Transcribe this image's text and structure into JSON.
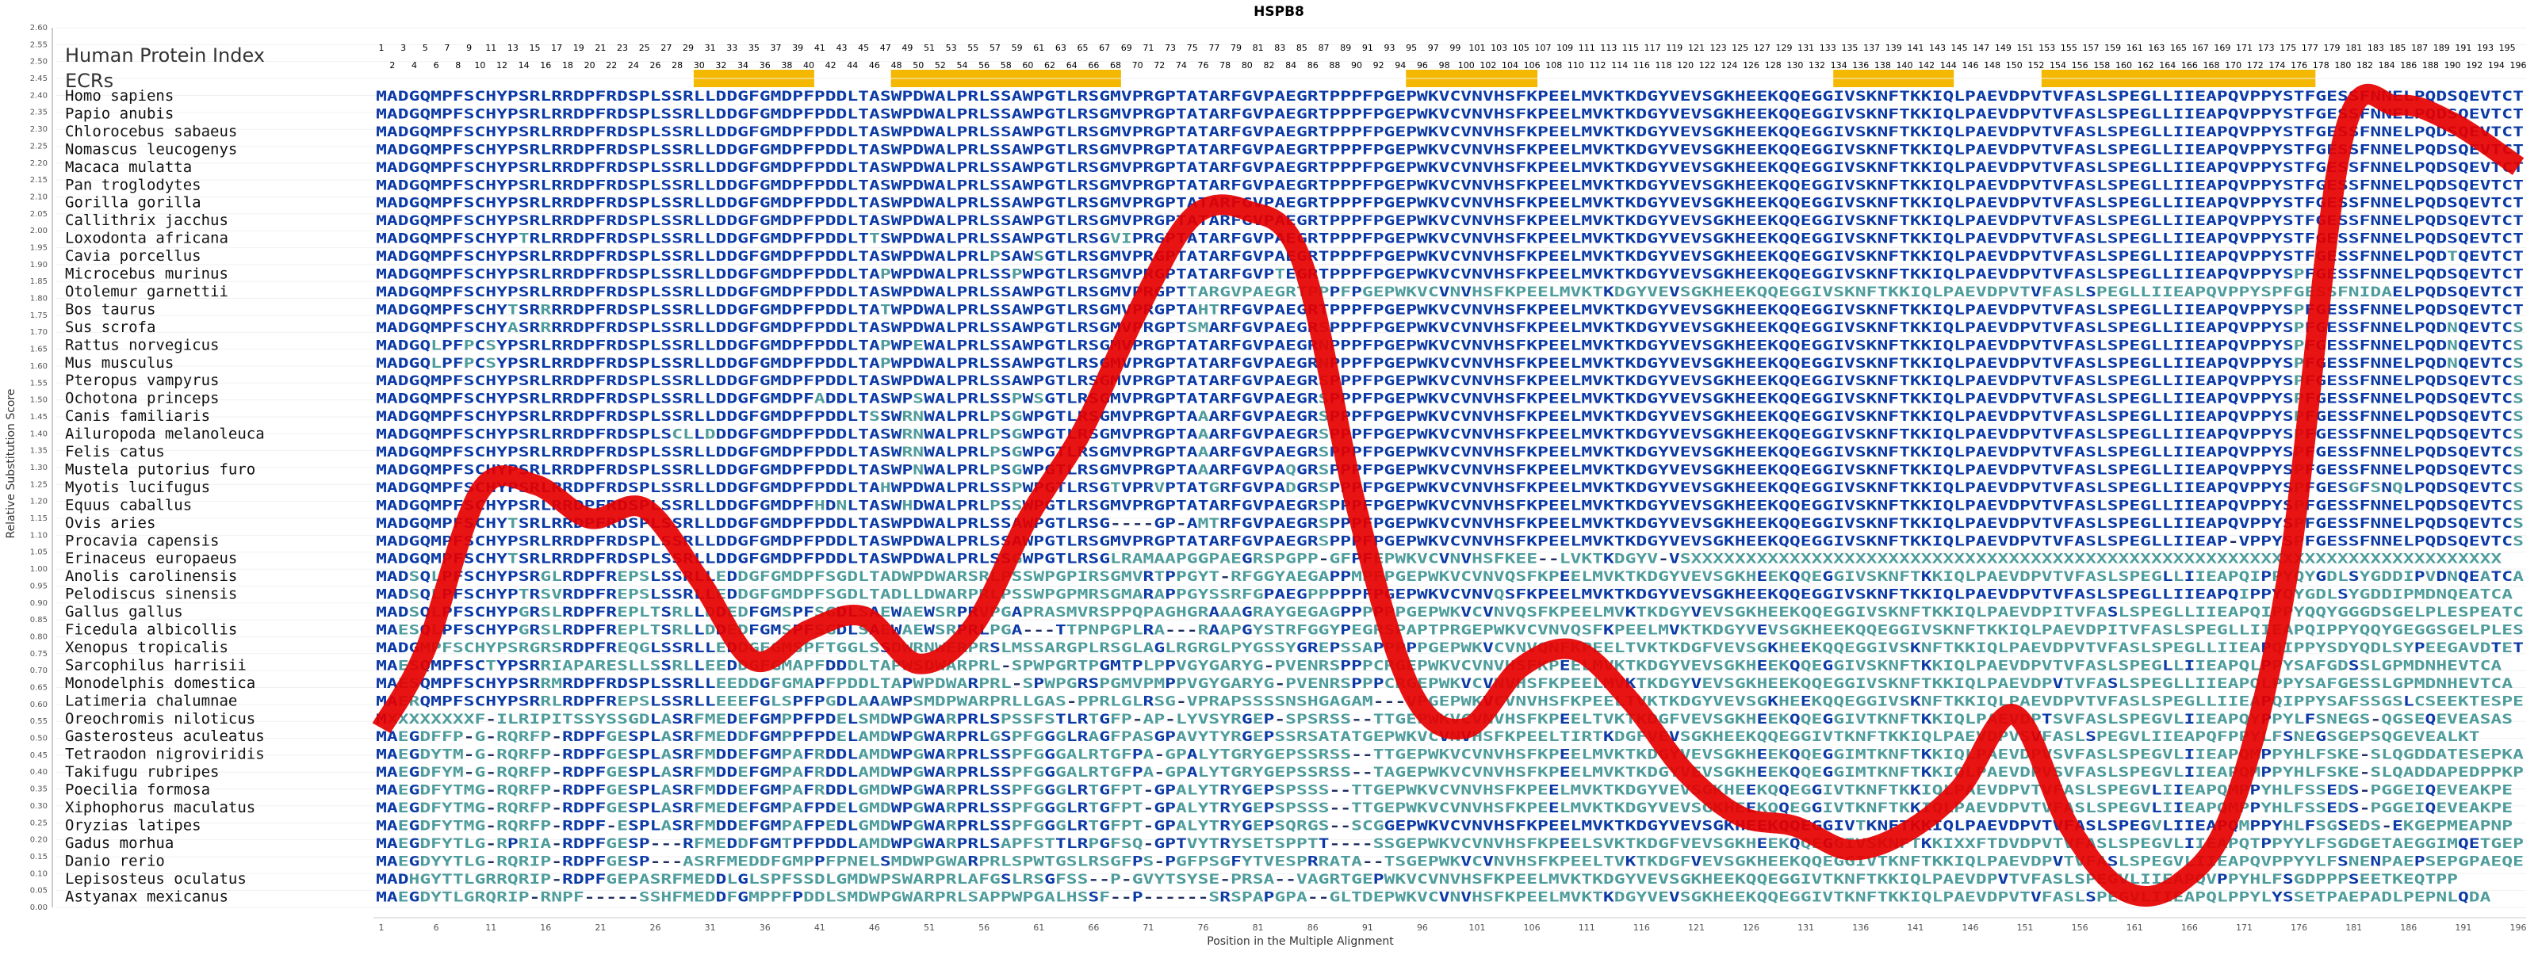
{
  "chart_data": {
    "type": "line",
    "title": "HSPB8",
    "xlabel": "Position in the Multiple Alignment",
    "ylabel": "Relative Substitution Score",
    "ylim": [
      0,
      2.6
    ],
    "y_ticks": [
      "0.00",
      "0.05",
      "0.10",
      "0.15",
      "0.20",
      "0.25",
      "0.30",
      "0.35",
      "0.40",
      "0.45",
      "0.50",
      "0.55",
      "0.60",
      "0.65",
      "0.70",
      "0.75",
      "0.80",
      "0.85",
      "0.90",
      "0.95",
      "1.00",
      "1.05",
      "1.10",
      "1.15",
      "1.20",
      "1.25",
      "1.30",
      "1.35",
      "1.40",
      "1.45",
      "1.50",
      "1.55",
      "1.60",
      "1.65",
      "1.70",
      "1.75",
      "1.80",
      "1.85",
      "1.90",
      "1.95",
      "2.00",
      "2.05",
      "2.10",
      "2.15",
      "2.20",
      "2.25",
      "2.30",
      "2.35",
      "2.40",
      "2.45",
      "2.50",
      "2.55",
      "2.60"
    ],
    "xlim": [
      1,
      196
    ],
    "x_ticks": [
      "1",
      "6",
      "11",
      "16",
      "21",
      "26",
      "31",
      "36",
      "41",
      "46",
      "51",
      "56",
      "61",
      "66",
      "71",
      "76",
      "81",
      "86",
      "91",
      "96",
      "101",
      "106",
      "111",
      "116",
      "121",
      "126",
      "131",
      "136",
      "141",
      "146",
      "151",
      "156",
      "161",
      "166",
      "171",
      "176",
      "181",
      "186",
      "191",
      "196"
    ],
    "human_protein_index_label": "Human Protein Index",
    "ecrs_label": "ECRs",
    "hpi_odd": [
      "1",
      "3",
      "5",
      "7",
      "9",
      "11",
      "13",
      "15",
      "17",
      "19",
      "21",
      "23",
      "25",
      "27",
      "29",
      "31",
      "33",
      "35",
      "37",
      "39",
      "41",
      "43",
      "45",
      "47",
      "49",
      "51",
      "53",
      "55",
      "57",
      "59",
      "61",
      "63",
      "65",
      "67",
      "69",
      "71",
      "73",
      "75",
      "77",
      "79",
      "81",
      "83",
      "85",
      "87",
      "89",
      "91",
      "93",
      "95",
      "97",
      "99",
      "101",
      "103",
      "105",
      "107",
      "109",
      "111",
      "113",
      "115",
      "117",
      "119",
      "121",
      "123",
      "125",
      "127",
      "129",
      "131",
      "133",
      "135",
      "137",
      "139",
      "141",
      "143",
      "145",
      "147",
      "149",
      "151",
      "153",
      "155",
      "157",
      "159",
      "161",
      "163",
      "165",
      "167",
      "169",
      "171",
      "173",
      "175",
      "177",
      "179",
      "181",
      "183",
      "185",
      "187",
      "189",
      "191",
      "193",
      "195"
    ],
    "hpi_even": [
      "2",
      "4",
      "6",
      "8",
      "10",
      "12",
      "14",
      "16",
      "18",
      "20",
      "22",
      "24",
      "26",
      "28",
      "30",
      "32",
      "34",
      "36",
      "38",
      "40",
      "42",
      "44",
      "46",
      "48",
      "50",
      "52",
      "54",
      "56",
      "58",
      "60",
      "62",
      "64",
      "66",
      "68",
      "70",
      "72",
      "74",
      "76",
      "78",
      "80",
      "82",
      "84",
      "86",
      "88",
      "90",
      "92",
      "94",
      "96",
      "98",
      "100",
      "102",
      "104",
      "106",
      "108",
      "110",
      "112",
      "114",
      "116",
      "118",
      "120",
      "122",
      "124",
      "126",
      "128",
      "130",
      "132",
      "134",
      "136",
      "138",
      "140",
      "142",
      "144",
      "146",
      "148",
      "150",
      "152",
      "154",
      "156",
      "158",
      "160",
      "162",
      "164",
      "166",
      "168",
      "170",
      "172",
      "174",
      "176",
      "178",
      "180",
      "182",
      "184",
      "186",
      "188",
      "190",
      "192",
      "194",
      "196"
    ],
    "ecr_regions": [
      [
        30,
        40
      ],
      [
        48,
        68
      ],
      [
        95,
        106
      ],
      [
        134,
        144
      ],
      [
        153,
        177
      ]
    ],
    "species": [
      "Homo sapiens",
      "Papio anubis",
      "Chlorocebus sabaeus",
      "Nomascus leucogenys",
      "Macaca mulatta",
      "Pan troglodytes",
      "Gorilla gorilla",
      "Callithrix jacchus",
      "Loxodonta africana",
      "Cavia porcellus",
      "Microcebus murinus",
      "Otolemur garnettii",
      "Bos taurus",
      "Sus scrofa",
      "Rattus norvegicus",
      "Mus musculus",
      "Pteropus vampyrus",
      "Ochotona princeps",
      "Canis familiaris",
      "Ailuropoda melanoleuca",
      "Felis catus",
      "Mustela putorius furo",
      "Myotis lucifugus",
      "Equus caballus",
      "Ovis aries",
      "Procavia capensis",
      "Erinaceus europaeus",
      "Anolis carolinensis",
      "Pelodiscus sinensis",
      "Gallus gallus",
      "Ficedula albicollis",
      "Xenopus tropicalis",
      "Sarcophilus harrisii",
      "Monodelphis domestica",
      "Latimeria chalumnae",
      "Oreochromis niloticus",
      "Gasterosteus aculeatus",
      "Tetraodon nigroviridis",
      "Takifugu rubripes",
      "Poecilia formosa",
      "Xiphophorus maculatus",
      "Oryzias latipes",
      "Gadus morhua",
      "Danio rerio",
      "Lepisosteus oculatus",
      "Astyanax mexicanus"
    ],
    "sequences": [
      "MADGQMPFSCHYPSRLRRDPFRDSPLSSRLLDDGFGMDPFPDDLTASWPDWALPRLSSAWPGTLRSGMVPRGPTATARFGVPAEGRTPPPFPGEPWKVCVNVHSFKPEELMVKTKDGYVEVSGKHEEKQQEGGIVSKNFTKKIQLPAEVDPVTVFASLSPEGLLIIEAPQVPPYSTFGESSFNNELPQDSQEVTCT",
      "MADGQMPFSCHYPSRLRRDPFRDSPLSSRLLDDGFGMDPFPDDLTASWPDWALPRLSSAWPGTLRSGMVPRGPTATARFGVPAEGRTPPPFPGEPWKVCVNVHSFKPEELMVKTKDGYVEVSGKHEEKQQEGGIVSKNFTKKIQLPAEVDPVTVFASLSPEGLLIIEAPQVPPYSTFGESSFNNELPQDSQEVTCT",
      "MADGQMPFSCHYPSRLRRDPFRDSPLSSRLLDDGFGMDPFPDDLTASWPDWALPRLSSAWPGTLRSGMVPRGPTATARFGVPAEGRTPPPFPGEPWKVCVNVHSFKPEELMVKTKDGYVEVSGKHEEKQQEGGIVSKNFTKKIQLPAEVDPVTVFASLSPEGLLIIEAPQVPPYSTFGESSFNNELPQDSQEVTCT",
      "MADGQMPFSCHYPSRLRRDPFRDSPLSSRLLDDGFGMDPFPDDLTASWPDWALPRLSSAWPGTLRSGMVPRGPTATARFGVPAEGRTPPPFPGEPWKVCVNVHSFKPEELMVKTKDGYVEVSGKHEEKQQEGGIVSKNFTKKIQLPAEVDPVTVFASLSPEGLLIIEAPQVPPYSTFGESSFNNELPQDSQEVTCT",
      "MADGQMPFSCHYPSRLRRDPFRDSPLSSRLLDDGFGMDPFPDDLTASWPDWALPRLSSAWPGTLRSGMVPRGPTATARFGVPAEGRTPPPFPGEPWKVCVNVHSFKPEELMVKTKDGYVEVSGKHEEKQQEGGIVSKNFTKKIQLPAEVDPVTVFASLSPEGLLIIEAPQVPPYSTFGESSFNNELPQDSQEVTCT",
      "MADGQMPFSCHYPSRLRRDPFRDSPLSSRLLDDGFGMDPFPDDLTASWPDWALPRLSSAWPGTLRSGMVPRGPTATARFGVPAEGRTPPPFPGEPWKVCVNVHSFKPEELMVKTKDGYVEVSGKHEEKQQEGGIVSKNFTKKIQLPAEVDPVTVFASLSPEGLLIIEAPQVPPYSTFGESSFNNELPQDSQEVTCT",
      "MADGQMPFSCHYPSRLRRDPFRDSPLSSRLLDDGFGMDPFPDDLTASWPDWALPRLSSAWPGTLRSGMVPRGPTATARFGVPAEGRTPPPFPGEPWKVCVNVHSFKPEELMVKTKDGYVEVSGKHEEKQQEGGIVSKNFTKKIQLPAEVDPVTVFASLSPEGLLIIEAPQVPPYSTFGESSFNNELPQDSQEVTCT",
      "MADGQMPFSCHYPSRLRRDPFRDSPLSSRLLDDGFGMDPFPDDLTASWPDWALPRLSSAWPGTLRSGMVPRGPTATARFGVPAEGRTPPPFPGEPWKVCVNVHSFKPEELMVKTKDGYVEVSGKHEEKQQEGGIVSKNFTKKIQLPAEVDPVTVFASLSPEGLLIIEAPQVPPYSTFGESSFNNELPQDSQEVTCT",
      "MADGQMPFSCHYPTRLRRDPFRDSPLSSRLLDDGFGMDPFPDDLTTSWPDWALPRLSSAWPGTLRSGVIPRGPTATARFGVPAEGRTPPPFPGEPWKVCVNVHSFKPEELMVKTKDGYVEVSGKHEEKQQEGGIVSKNFTKKIQLPAEVDPVTVFASLSPEGLLIIEAPQVPPYSTFGESSFNNELPQDSQEVTCT",
      "MADGQMPFSCHYPSRLRRDPFRDSPLSSRLLDDGFGMDPFPDDLTASWPDWALPRLPSAWSGTLRSGMVPRGPTATARFGVPAEGRTPPPFPGEPWKVCVNVHSFKPEELMVKTKDGYVEVSGKHEEKQQEGGIVSKNFTKKIQLPAEVDPVTVFASLSPEGLLIIEAPQVPPYSTFGESSFNNELPQDTQEVTCT",
      "MADGQMPFSCHYPSRLRRDPFRDSPLSSRLLDDGFGMDPFPDDLTAPWPDWALPRLSSPWPGTLRSGMVPRGPTATARFGVPTEGRTPPPFPGEPWKVCVNVHSFKPEELMVKTKDGYVEVSGKHEEKQQEGGIVSKNFTKKIQLPAEVDPVTVFASLSPEGLLIIEAPQVPPYSPFGESSFNNELPQDSQEVTCT",
      "MADGQMPFSCHYPSRLRRDPFRDSPLSSRLLDDGFGMDPFPDDLTASWPDWALPRLSSAWPGTLRSGMVPRGPTTARGVPAEGRTPPPFPGEPWKVCVNVHSFKPEELMVKTKDGYVEVSGKHEEKQQEGGIVSKNFTKKIQLPAEVDPVTVFASLSPEGLLIIEAPQVPPYSPFGESSFNIDAELPQDSQEVTCT",
      "MADGQMPFSCHYTSRRRRDPFRDSPLSSRLLDDGFGMDPFPDDLTATWPDWALPRLSSAWPGTLRSGMVPRGPTAHTRFGVPAEGRTPPPFPGEPWKVCVNVHSFKPEELMVKTKDGYVEVSGKHEEKQQEGGIVSKNFTKKIQLPAEVDPVTVFASLSPEGLLIIEAPQVPPYSPFGESSFNNELPQDSQEVTCT",
      "MADGQMPFSCHYASRRRRDPFRDSPLSSRLLDDGFGMDPFPDDLTASWPDWALPRLSSAWPGTLRSGMVPRGPTSMARFGVPAEGRSPPPFPGEPWKVCVNVHSFKPEELMVKTKDGYVEVSGKHEEKQQEGGIVSKNFTKKIQLPAEVDPVTVFASLSPEGLLIIEAPQVPPYSPFGESSFNNELPQDNQEVTCS",
      "MADGQLPFPCSYPSRLRRDPFRDSPLSSRLLDDGFGMDPFPDDLTAPWPEWALPRLSSAWPGTLRSGMVPRGPTATARFGVPAEGRNPPPFPGEPWKVCVNVHSFKPEELMVKTKDGYVEVSGKHEEKQQEGGIVSKNFTKKIQLPAEVDPVTVFASLSPEGLLIIEAPQVPPYSPFGESSFNNELPQDNQEVTCS",
      "MADGQLPFPCSYPSRLRRDPFRDSPLSSRLLDDGFGMDPFPDDLTAPWPDWALPRLSSAWPGTLRSGMVPRGPTATARFGVPAEGRNPPPFPGEPWKVCVNVHSFKPEELMVKTKDGYVEVSGKHEEKQQEGGIVSKNFTKKIQLPAEVDPVTVFASLSPEGLLIIEAPQVPPYSPFGESSFNNELPQDNQEVTCS",
      "MADGQMPFSCHYPSRLRRDPFRDSPLSSRLLDDGFGMDPFPDDLTASWPDWALPRLSSAWPGTLRSGMVPRGPTATARFGVPAEGRSPPPFPGEPWKVCVNVHSFKPEELMVKTKDGYVEVSGKHEEKQQEGGIVSKNFTKKIQLPAEVDPVTVFASLSPEGLLIIEAPQVPPYSPFGESSFNNELPQDSQEVTCS",
      "MADGQMPFSCHYPSRLRRDPFRDSPLSSRLLDDGFGMDPFADDLTASWPSWALPRLSSPWSGTLRSGMVPRGPTATARFGVPAEGRSPPPFPGEPWKVCVNVHSFKPEELMVKTKDGYVEVSGKHEEKQQEGGIVSKNFTKKIQLPAEVDPVTVFASLSPEGLLIIEAPQVPPYSPFGESSFNNELPQDSQEVTCS",
      "MADGQMPFSCHYPSRLRRDPFRDSPLSSRLLDDGFGMDPFPDDLTSSWRNWALPRLPSGWPGTLRSGMVPRGPTAAARFGVPAEGRSPPPFPGEPWKVCVNVHSFKPEELMVKTKDGYVEVSGKHEEKQQEGGIVSKNFTKKIQLPAEVDPVTVFASLSPEGLLIIEAPQVPPYSPFGESSFNNELPQDSQEVTCS",
      "MADGQMPFSCHYPSRLRRDPFRDSPLSCLLDDDGFGMDPFPDDLTASWRNWALPRLPSGWPGTLRSGMVPRGPTAAARFGVPAEGRSPPPFPGEPWKVCVNVHSFKPEELMVKTKDGYVEVSGKHEEKQQEGGIVSKNFTKKIQLPAEVDPVTVFASLSPEGLLIIEAPQVPPYSPFGESSFNNELPQDSQEVTCS",
      "MADGQMPFSCHYPSRLRRDPFRDSPLSSRLLDDGFGMDPFPDDLTASWRNWALPRLPSGWPGTLRSGMVPRGPTAAARFGVPAEGRSPPPFPGEPWKVCVNVHSFKPEELMVKTKDGYVEVSGKHEEKQQEGGIVSKNFTKKIQLPAEVDPVTVFASLSPEGLLIIEAPQVPPYSPFGESSFNNELPQDSQEVTCS",
      "MADGQMPFSCHYPSRLRRDPFRDSPLSSRLLDDGFGMDPFPDDLTASWPNWALPRLPSGWPGTLRSGMVPRGPTAAARFGVPAQGRSPPPFPGEPWKVCVNVHSFKPEELMVKTKDGYVEVSGKHEEKQQEGGIVSKNFTKKIQLPAEVDPVTVFASLSPEGLLIIEAPQVPPYSPFGESSFNNELPQDSQEVTCS",
      "MADGQMPFSCHYPSRLRRDPFRDSPLSSRLLDDGFGMDPFPDDLTAHWPDWALPRLSSPWPGTLRSGTVPRVPTATGRFGVPADGRSPPPFPGEPWKVCVNVHSFKPEELMVKTKDGYVEVSGKHEEKQQEGGIVSKNFTKKIQLPAEVDPVTVFASLSPEGLLIIEAPQVPPYSPFGESGFSNQLPQDSQEVTCS",
      "MADGQMPFSCHYPSRLRRDPFRDSPLSSRLLDDGFGMDPFHDNLTASWHDWALPRLPSSWPGTLRSGMVPRGPTATARFGVPAEGRSPPPFPGEPWKVCVNVHSFKPEELMVKTKDGYVEVSGKHEEKQQEGGIVSKNFTKKIQLPAEVDPVTVFASLSPEGLLIIEAPQVPPYSPFGESSFNNELPQDSQEVTCS",
      "MADGQMPFSCHYTSRLRRDPFRDSPLSSRLLDDGFGMDPFPDDLTASWPDWALPRLSSAWPGTLRSG----GP-AMTRFGVPAEGRSPPPFPGEPWKVCVNVHSFKPEELMVKTKDGYVEVSGKHEEKQQEGGIVSKNFTKKIQLPAEVDPVTVFASLSPEGLLIIEAPQVPPYSPFGESSFNNELPQDSQEVTCS",
      "MADGQMPFSCHYPSRLRRDPFRDSPLSSRLLDDGFGMDPFPDDLTASWPDWALPRLSSAWPGTLRSGMVPRGPTATARFGVPAEGRSPPPFPGEPWKVCVNVHSFKPEELMVKTKDGYVEVSGKHEEKQQEGGIVSKNFTKKIQLPAEVDPVTVFASLSPEGLLIIEAP-VPPYSPFGESSFNNELPQDSQEVTCS",
      "MADGQMPFSCHYTSRLRRDPFRDSPLSSRLLDDGFGMDPFPDDLTASWPDWALPRLSSGWPGTLRSGLRAMAAPGGPAEGRSPGPP-GFPFEPWKVCVNVHSFKEE--LVKTKDGYV-VSXXXXXXXXXXXXXXXXXXXXXXXXXXXXXXXXXXXXXXXXXXXXXXXXXXXXXXXXXXXXXXXXXXXXXXXXXX",
      "MADSQLPFSCHYPSRGLRDPFREPSLSSRLLEDDGFGMDPFSGDLTADWPDWARSRLPSSWPGPIRSGMVRTPPGYT-RFGGYAEGAPPMPFPGEPWKVCVNVQSFKPEELMVKTKDGYVEVSGKHEEKQQEGGIVSKNFTKKIQLPAEVDPVTVFASLSPEGLLIIEAPQIPPYQYGDLSYGDDIPVDNQEATCA",
      "MADSQLPFSCHYPTRSVRDPFREPSLSSRLLEDDGFGMDPFSGDLTADLLDWARPRLPSSWPGPMRSGMARAPPGYSSRFGPAEGPPPPPFPGEPWKVCVNVQSFKPEELMVKTKDGYVEVSGKHEEKQQEGGIVSKNFTKKIQLPAEVDPVTVFASLSPEGLLIIEAPQIPPYQYGDLSYGDDIPMDNQEATCA",
      "MADSQLPFSCHYPGRSLRDPFREPLTSRLLDDEDFGMSPFSGDLSAEWAEWSRPRVPGAPRASMVRSPPQPAGHGRAAAGRAYGEGAGPPPPPPGEPWKVCVNVQSFKPEELMVKTKDGYVEVSGKHEEKQQEGGIVSKNFTKKIQLPAEVDPITVFASLSPEGLLIIEAPQIPPYQQYGGGDSGELPLESPEATCA",
      "MAESQLPFSCHYPGRSLRDPFREPLTSRLLDDEDFGMSPFSGDLSAEWAEWSRPRLPGA---TTPNPGPLRA---RAAPGYSTRFGGYPEGRSPAPTPRGEPWKVCVNVQSFKPEELMVKTKDGYVEVSGKHEEKQQEGGIVSKNFTKKIQLPAEVDPITVFASLSPEGLLIIEAPQIPPYQQYGEGGSGELPLESPEATCA",
      "MADGMPFSCHYPSRGRSRDPFREQGLSSRLLEDDGFGMSPFTGGLSSDWRNWERPRSLMSSARGPLRSGLAGLRGRGLPYGSSYGREPSSAPPPPPGEPWKVCVNVQNFKPEELTVKTKDGFVEVSGKHEEKQQEGGIVSKNFTKKIQLPAEVDPVTVFASLSPEGLLIIEAPQIPPYSDYQDLSYPEEGAVDTETTCA",
      "MAESQMPFSCTYPSRRIAPARESLLSSRLLEEDDGFGMAPFDDDLTAPWSDWARPRL-SPWPGRTPGMTPLPPVGYGARYG-PVENRSPPPCRGEPWKVCVNVHSFKPEELMVKTKDGYVEVSGKHEEKQQEGGIVSKNFTKKIQLPAEVDPVTVFASLSPEGLLIIEAPQLPPYSAFGDSSLGPMDNHEVTCA",
      "MAESQMPFSCHYPSRRMRDPFRDSPLSSRLLEEDDGFGMAPFPDDLTAPWPDWARPRL-SPWPGRSPGMVPMPPVGYGARYG-PVENRSPPPCRGEPWKVCVNVHSFKPEELMVKTKDGYVEVSGKHEEKQQEGGIVSKNFTKKIQLPAEVDPVTVFASLSPEGLLIIEAPQLPPYSAFGESSLGPMDNHEVTCA",
      "MAERQMPFSCHYPSRRLRDPFREPSLSSRLLEEEFGLSPFPGDLAAAWPSMDPWARPRLLGAS-PPRLGLRSG-VPRAPSSSSNSHGAGAM---VPGEPWKVCVNVHSFKPEELTVKTKDGYVEVSGKHEEKQQEGGIVSKNFTKKIQLPAEVDPVTVFASLSPEGLLIIEAPQIPPYSAFSSGSLCSEEKTESPEAIVS",
      "MXXXXXXXXF-ILRIPITSSYSSGDLASRFMEDEFGMPPFPDELSMDWPGWARPRLSPSSFSTLRTGFP-AP-LYVSYRGEP-SPSRSS--TTGEPWKVCVNVHSFKPEELTVKTKDGFVEVSGKHEEKQQEGGIVTKNFTKKIQLPAEVDPTSVFASLSPEGVLIIEAPQYPPYLFSNEGS-QGSEQEVEASAS",
      "MAEGDFFP-G-RQRFP-RDPFGESPLASRFMEDDFGMPPFPDELAMDWPGWARPRLGSPFGGGLRAGFPASGPAVYTYRGEPSSRSATATGEPWKVCVNVHSFKPEELTIRTKDGFVEVSGKHEEKQQEGGIVTKNFTKKIQLPAEVDPVSVFASLSPEGVLIIEAPQFPPYLFSNEGSGEPSQGEVEALKT",
      "MAEGDYTM-G-RQRFP-RDPFGESPLASRFMDDEFGMPAFRDDLAMDWPGWARPRLSSPFGGGALRTGFPA-GPALYTGRYGEPSSRSS--TTGEPWKVCVNVHSFKPEELMVKTKDGYVEVSGKHEEKQQEGGIMTKNFTKKIQLPAEVDPVSVFASLSPEGVLIIEAPQMPPYHLFSKE-SLQGDDATESEPKA",
      "MAEGDFYM-G-RQRFP-RDPFGESPLASRFMDDEFGMPAFRDDLAMDWPGWARPRLSSPFGGGALRTGFPA-GPALYTGRYGEPSSRSS--TAGEPWKVCVNVHSFKPEELMVKTKDGYVEVSGKHEEKQQEGGIMTKNFTKKIQLPAEVDPVSVFASLSPEGVLIIEAPQMPPYHLFSKE-SLQADDAPEDPPKP",
      "MAEGDFYTMG-RQRFP-RDPFGESPLASRFMDDEFGMPAFRDDLGMDWPGWARPRLSSPFGGGLRTGFPT-GPALYTRYGEPSPSSS--TTGEPWKVCVNVHSFKPEELMVKTKDGYVEVSGKHEEKQQEGGIVTKNFTKKIQLPAEVDPVTVFASLSPEGVLIIEAPQMPPYHLFSSEDS-PGGEIQEVEAKPE",
      "MAEGDFYTMG-RQRFP-RDPFGESPLASRFMEDEFGMPAFPDELGMDWPGWARPRLSSPFGGGLRTGFPT-GPALYTRYGEPSPSSS--TTGEPWKVCVNVHSFKPEELMVKTKDGYVEVSGKHEEKQQEGGIVTKNFTKKIQLPAEVDPVTVFASLSPEGVLIIEAPQMPPYHLFSSEDS-PGGEIQEVEAKPE",
      "MAEGDFYTMG-RQRFP-RDPF-ESPLASRFMDDEFGMPAFPEDLGMDWPGWARPRLSSPFGGGLRTGFPT-GPALYTRYGEPSQRGS--SCGGEPWKVCVNVHSFKPEELMVKTKDGYVEVSGKHEEKQQEGGIVTKNFTKKIQLPAEVDPVTVFASLSPEGVLIIEAPQMPPYHLFSGSEDS-EKGEPMEAPNP",
      "MAEGDFYTLG-RPRIA-RDPFGESP---RFMEDDFGMTPFPDDLAMDWPGWARPRLSAPFSTTLRPGFSQ-GPTVYTRYSETSPPTT----SSGEPWKVCVNVHSFKPEELSVKTKDGFVEVSGKHEEKQQEGGIVSKNFTKKIXXFTDVDPVTVFASLSPEGVLIIEAPQTPPYYLFSGDGETAEGGIMQETGEPGP",
      "MAEGDYYTLG-RQRIP-RDPFGESP---ASRFMEDDFGMPPFPNELSMDWPGWARPRLSPWTGSLRSGFPS-PGFPSGFYTVESPRRATA--TSGEPWKVCVNVHSFKPEELTVKTKDGFVEVSGKHEEKQQEGGIVTKNFTKKIQLPAEVDPVTVFASLSPEGVLIIEAPQVPPYYLFSNENPAEPSEPGPAEQEPP",
      "MADHGYTTLGRRQRIP-RDPFGEPASRFMEDDLGLSPFSSDLGMDWPSWARPRLAFGSLRSGFSS--P-GVYTSYSE-PRSA--VAGRTGEPWKVCVNVHSFKPEELMVKTKDGYVEVSGKHEEKQQEGGIVTKNFTKKIQLPAEVDPVTVFASLSPEGVLIIEAPQVPPYHLFSGDPPPSEETKEQTPP",
      "MAEGDYTLGRQRIP-RNPF-----SSHFMEDDFGMPPFPDDLSMDWPGWARPRLSAPPWPGALHSSF--P------SRSPAPGPA--GLTDEPWKVCVNVHSFKPEELMVKTKDGYVEVSGKHEEKQQEGGIVTKNFTKKIQLPAEVDPVTVFASLSPEGVLIIEAPQLPPYLYSSETPAEPADLPEPNLQDA"
    ],
    "series": [
      {
        "x": [
          1,
          5,
          10,
          15,
          20,
          25,
          30,
          35,
          40,
          45,
          50,
          55,
          60,
          65,
          70,
          75,
          80,
          85,
          90,
          95,
          100,
          105,
          110,
          115,
          120,
          125,
          130,
          135,
          140,
          145,
          150,
          155,
          160,
          165,
          170,
          175,
          180,
          185,
          190,
          196
        ],
        "y": [
          0.53,
          0.76,
          1.23,
          1.25,
          1.15,
          1.18,
          0.97,
          0.73,
          0.82,
          0.86,
          0.72,
          0.83,
          1.15,
          1.41,
          1.76,
          2.04,
          2.06,
          1.91,
          1.18,
          0.64,
          0.53,
          0.71,
          0.76,
          0.61,
          0.4,
          0.27,
          0.24,
          0.17,
          0.22,
          0.35,
          0.57,
          0.24,
          0.05,
          0.07,
          0.3,
          0.99,
          2.27,
          2.37,
          2.32,
          2.19
        ]
      }
    ]
  }
}
